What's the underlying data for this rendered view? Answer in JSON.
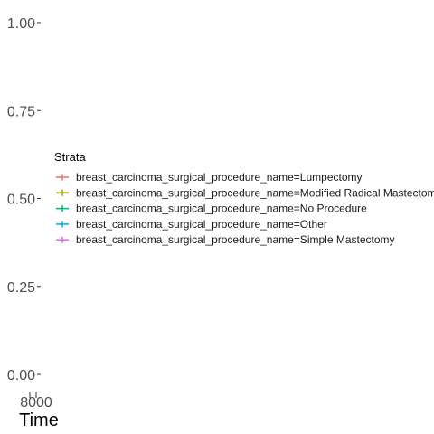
{
  "chart_data": {
    "type": "line",
    "title": "",
    "xlabel": "Time",
    "ylabel": "",
    "ylim": [
      0,
      1
    ],
    "y_ticks": [
      "0.00",
      "0.25",
      "0.50",
      "0.75",
      "1.00"
    ],
    "y_tick_values": [
      0,
      0.25,
      0.5,
      0.75,
      1.0
    ],
    "x_tick_text": "8000",
    "legend": {
      "title": "Strata",
      "placement": "left-center",
      "entries": [
        {
          "label": "breast_carcinoma_surgical_procedure_name=Lumpectomy",
          "color": "#F8766D"
        },
        {
          "label": "breast_carcinoma_surgical_procedure_name=Modified Radical Mastectomy",
          "color": "#A3A500"
        },
        {
          "label": "breast_carcinoma_surgical_procedure_name=No Procedure",
          "color": "#00BF7D"
        },
        {
          "label": "breast_carcinoma_surgical_procedure_name=Other",
          "color": "#00B0F6"
        },
        {
          "label": "breast_carcinoma_surgical_procedure_name=Simple Mastectomy",
          "color": "#E76BF3"
        }
      ]
    },
    "series": []
  }
}
